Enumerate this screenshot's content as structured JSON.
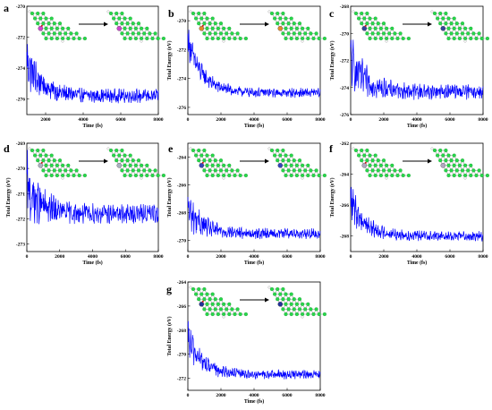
{
  "chart_data": [
    {
      "panel": "a",
      "type": "line",
      "xlabel": "Time (fs)",
      "ylabel": "",
      "xlim": [
        1000,
        8000
      ],
      "ylim": [
        -277,
        -270
      ],
      "xticks": [
        2000,
        4000,
        6000,
        8000
      ],
      "yticks": [
        -270,
        -272,
        -274,
        -276
      ],
      "series": [
        {
          "color": "#0000ff",
          "start": -273.0,
          "mean": -275.8,
          "amp": 0.35
        }
      ],
      "inset": {
        "dopant_color": "#cc44cc"
      }
    },
    {
      "panel": "b",
      "type": "line",
      "xlabel": "Time (fs)",
      "ylabel": "Total Energy (eV)",
      "xlim": [
        0,
        8000
      ],
      "ylim": [
        -276.5,
        -269
      ],
      "xticks": [
        0,
        2000,
        4000,
        6000,
        8000
      ],
      "yticks": [
        -270,
        -272,
        -274,
        -276
      ],
      "series": [
        {
          "color": "#0000ff",
          "start": -270.5,
          "mean": -275.0,
          "amp": 0.25
        }
      ],
      "inset": {
        "dopant_color": "#e08a2a"
      }
    },
    {
      "panel": "c",
      "type": "line",
      "xlabel": "Time (fs)",
      "ylabel": "Total Energy (eV)",
      "xlim": [
        0,
        8000
      ],
      "ylim": [
        -276,
        -268
      ],
      "xticks": [
        0,
        2000,
        4000,
        6000,
        8000
      ],
      "yticks": [
        -268,
        -270,
        -272,
        -274,
        -276
      ],
      "series": [
        {
          "color": "#0000ff",
          "start": -271.5,
          "mean": -274.3,
          "amp": 0.45
        }
      ],
      "inset": {
        "dopant_color": "#334499"
      }
    },
    {
      "panel": "d",
      "type": "line",
      "xlabel": "Time (fs)",
      "ylabel": "Total Energy (eV)",
      "xlim": [
        0,
        8000
      ],
      "ylim": [
        -273.3,
        -269
      ],
      "xticks": [
        0,
        2000,
        4000,
        6000,
        8000
      ],
      "yticks": [
        -269,
        -270,
        -271,
        -272,
        -273
      ],
      "series": [
        {
          "color": "#0000ff",
          "start": -270.6,
          "mean": -271.8,
          "amp": 0.3
        }
      ],
      "inset": {
        "dopant_color": "#aab0c0"
      }
    },
    {
      "panel": "e",
      "type": "line",
      "xlabel": "Time (fs)",
      "ylabel": "Total Energy (eV)",
      "xlim": [
        0,
        8000
      ],
      "ylim": [
        -270.8,
        -263
      ],
      "xticks": [
        0,
        2000,
        4000,
        6000,
        8000
      ],
      "yticks": [
        -264,
        -266,
        -268,
        -270
      ],
      "series": [
        {
          "color": "#0000ff",
          "start": -267.3,
          "mean": -269.5,
          "amp": 0.3
        }
      ],
      "inset": {
        "dopant_color": "#3344bb"
      }
    },
    {
      "panel": "f",
      "type": "line",
      "xlabel": "Time (fs)",
      "ylabel": "Total Energy (eV)",
      "xlim": [
        0,
        8000
      ],
      "ylim": [
        -269,
        -262
      ],
      "xticks": [
        0,
        2000,
        4000,
        6000,
        8000
      ],
      "yticks": [
        -262,
        -264,
        -266,
        -268
      ],
      "series": [
        {
          "color": "#0000ff",
          "start": -265.2,
          "mean": -268.0,
          "amp": 0.25
        }
      ],
      "inset": {
        "dopant_color": "#b0a8c0"
      }
    },
    {
      "panel": "g",
      "type": "line",
      "xlabel": "Time (fs)",
      "ylabel": "Total Energy (eV)",
      "xlim": [
        0,
        8000
      ],
      "ylim": [
        -273,
        -264
      ],
      "xticks": [
        0,
        2000,
        4000,
        6000,
        8000
      ],
      "yticks": [
        -264,
        -266,
        -268,
        -270,
        -272
      ],
      "series": [
        {
          "color": "#0000ff",
          "start": -268.0,
          "mean": -271.7,
          "amp": 0.3
        }
      ],
      "inset": {
        "dopant_color": "#223399"
      }
    }
  ]
}
